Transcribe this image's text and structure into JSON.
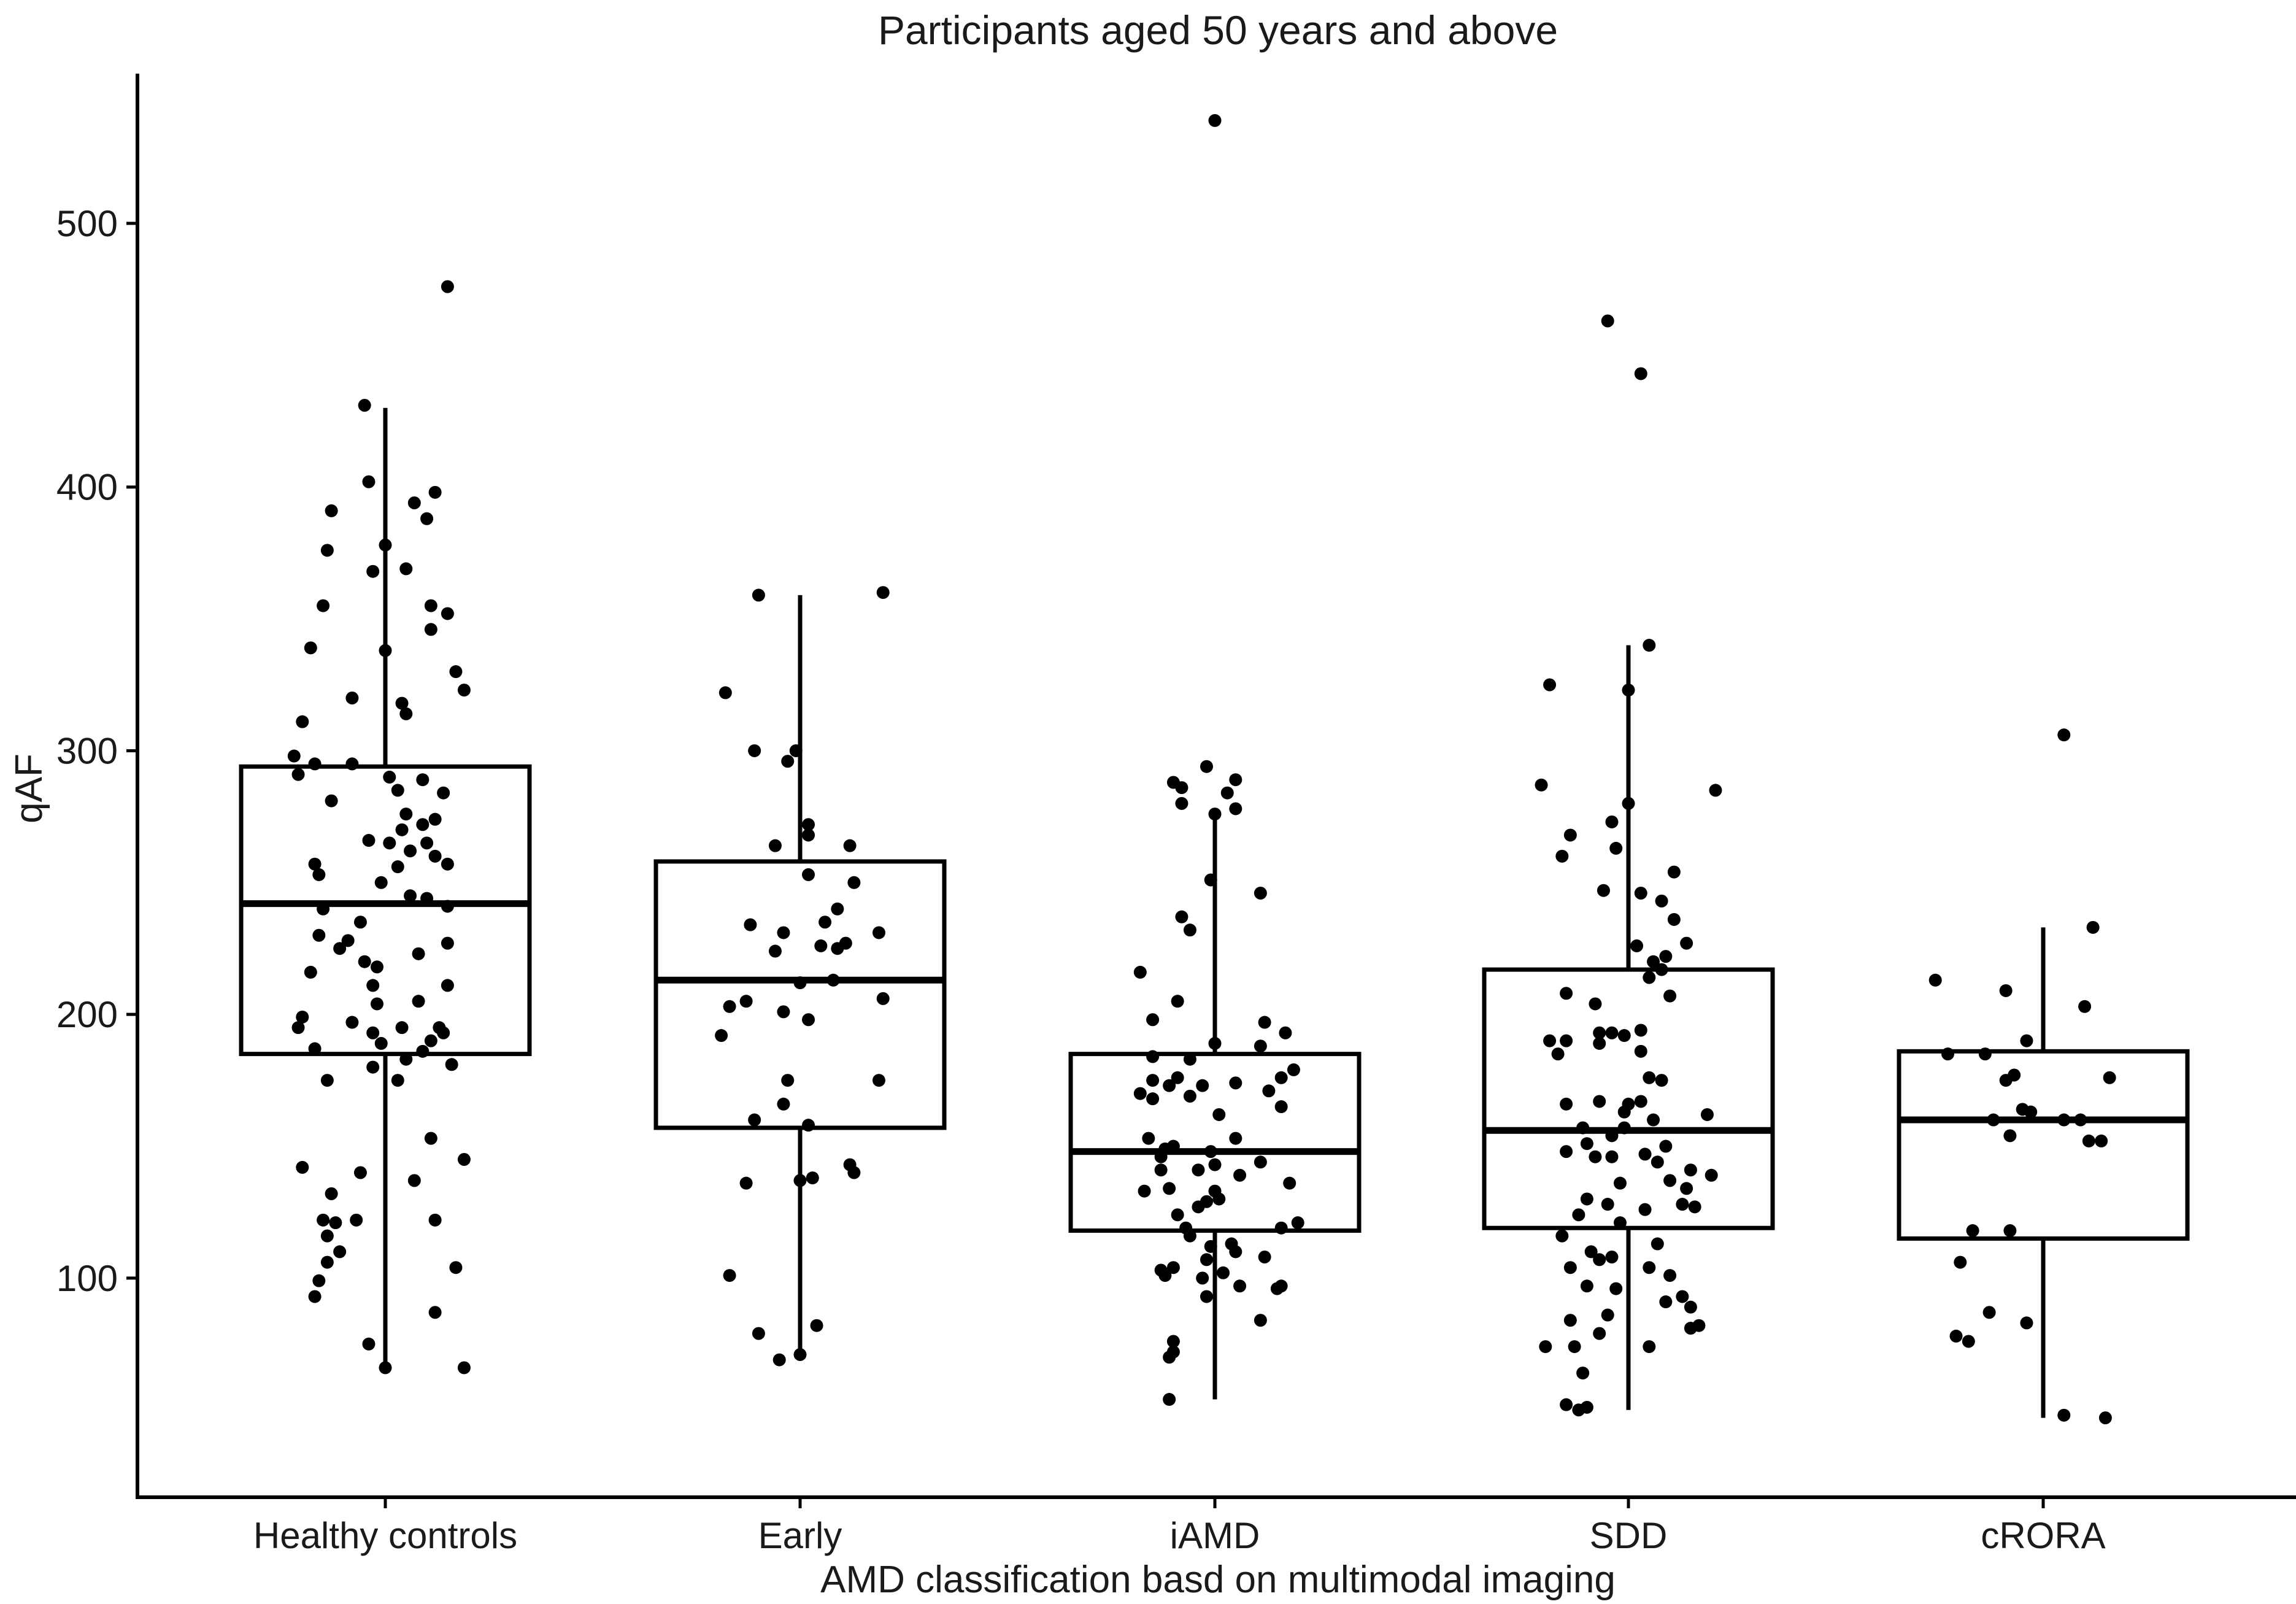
{
  "chart_data": {
    "type": "boxplot",
    "title": "Participants aged 50 years and above",
    "xlabel": "AMD classification basd on multimodal imaging",
    "ylabel": "qAF",
    "ylim": [
      30,
      570
    ],
    "yticks": [
      100,
      200,
      300,
      400,
      500
    ],
    "categories": [
      "Healthy controls",
      "Early",
      "iAMD",
      "SDD",
      "cRORA"
    ],
    "boxes": [
      {
        "name": "Healthy controls",
        "whisker_low": 66,
        "q1": 185,
        "median": 242,
        "q3": 294,
        "whisker_high": 430
      },
      {
        "name": "Early",
        "whisker_low": 70,
        "q1": 157,
        "median": 213,
        "q3": 258,
        "whisker_high": 359
      },
      {
        "name": "iAMD",
        "whisker_low": 54,
        "q1": 118,
        "median": 148,
        "q3": 185,
        "whisker_high": 276
      },
      {
        "name": "SDD",
        "whisker_low": 50,
        "q1": 119,
        "median": 156,
        "q3": 217,
        "whisker_high": 340
      },
      {
        "name": "cRORA",
        "whisker_low": 47,
        "q1": 115,
        "median": 160,
        "q3": 186,
        "whisker_high": 233
      }
    ],
    "points": [
      [
        [
          -0.05,
          431
        ],
        [
          0.15,
          476
        ],
        [
          -0.04,
          402
        ],
        [
          0.12,
          398
        ],
        [
          0.07,
          394
        ],
        [
          0.1,
          388
        ],
        [
          -0.13,
          391
        ],
        [
          -0.14,
          376
        ],
        [
          0.0,
          378
        ],
        [
          -0.03,
          368
        ],
        [
          0.05,
          369
        ],
        [
          -0.15,
          355
        ],
        [
          0.11,
          355
        ],
        [
          0.15,
          352
        ],
        [
          0.11,
          346
        ],
        [
          0.0,
          338
        ],
        [
          -0.18,
          339
        ],
        [
          0.17,
          330
        ],
        [
          0.19,
          323
        ],
        [
          -0.08,
          320
        ],
        [
          0.04,
          318
        ],
        [
          0.05,
          314
        ],
        [
          -0.2,
          311
        ],
        [
          -0.22,
          298
        ],
        [
          -0.17,
          295
        ],
        [
          -0.08,
          295
        ],
        [
          -0.21,
          291
        ],
        [
          0.01,
          290
        ],
        [
          0.09,
          289
        ],
        [
          0.03,
          285
        ],
        [
          0.14,
          284
        ],
        [
          -0.13,
          281
        ],
        [
          0.05,
          276
        ],
        [
          0.12,
          274
        ],
        [
          0.09,
          272
        ],
        [
          0.04,
          270
        ],
        [
          -0.04,
          266
        ],
        [
          0.01,
          265
        ],
        [
          0.1,
          265
        ],
        [
          0.06,
          262
        ],
        [
          0.12,
          260
        ],
        [
          -0.17,
          257
        ],
        [
          0.15,
          257
        ],
        [
          0.03,
          256
        ],
        [
          -0.16,
          253
        ],
        [
          -0.01,
          250
        ],
        [
          0.06,
          245
        ],
        [
          0.1,
          244
        ],
        [
          -0.15,
          240
        ],
        [
          0.15,
          241
        ],
        [
          -0.06,
          235
        ],
        [
          -0.16,
          230
        ],
        [
          -0.09,
          228
        ],
        [
          0.15,
          227
        ],
        [
          -0.11,
          225
        ],
        [
          0.08,
          223
        ],
        [
          -0.05,
          220
        ],
        [
          -0.02,
          218
        ],
        [
          -0.18,
          216
        ],
        [
          0.15,
          211
        ],
        [
          -0.03,
          211
        ],
        [
          0.08,
          205
        ],
        [
          -0.02,
          204
        ],
        [
          -0.2,
          199
        ],
        [
          -0.21,
          195
        ],
        [
          0.13,
          195
        ],
        [
          -0.08,
          197
        ],
        [
          -0.03,
          193
        ],
        [
          0.04,
          195
        ],
        [
          -0.01,
          189
        ],
        [
          0.14,
          193
        ],
        [
          0.11,
          190
        ],
        [
          0.09,
          186
        ],
        [
          -0.17,
          187
        ],
        [
          0.05,
          183
        ],
        [
          0.16,
          181
        ],
        [
          -0.03,
          180
        ],
        [
          -0.14,
          175
        ],
        [
          0.03,
          175
        ],
        [
          0.11,
          153
        ],
        [
          0.19,
          145
        ],
        [
          -0.2,
          142
        ],
        [
          -0.06,
          140
        ],
        [
          0.07,
          137
        ],
        [
          -0.13,
          132
        ],
        [
          -0.12,
          121
        ],
        [
          -0.07,
          122
        ],
        [
          -0.15,
          122
        ],
        [
          0.12,
          122
        ],
        [
          -0.14,
          116
        ],
        [
          -0.11,
          110
        ],
        [
          -0.14,
          106
        ],
        [
          0.17,
          104
        ],
        [
          -0.16,
          99
        ],
        [
          -0.17,
          93
        ],
        [
          0.12,
          87
        ],
        [
          -0.04,
          75
        ],
        [
          0.0,
          66
        ],
        [
          0.19,
          66
        ]
      ],
      [
        [
          0.2,
          360
        ],
        [
          -0.1,
          359
        ],
        [
          -0.18,
          322
        ],
        [
          -0.11,
          300
        ],
        [
          -0.01,
          300
        ],
        [
          -0.03,
          296
        ],
        [
          0.02,
          272
        ],
        [
          0.02,
          268
        ],
        [
          0.12,
          264
        ],
        [
          -0.06,
          264
        ],
        [
          0.13,
          250
        ],
        [
          0.02,
          253
        ],
        [
          0.09,
          240
        ],
        [
          0.06,
          235
        ],
        [
          -0.12,
          234
        ],
        [
          -0.04,
          231
        ],
        [
          0.19,
          231
        ],
        [
          0.11,
          227
        ],
        [
          0.09,
          225
        ],
        [
          0.05,
          226
        ],
        [
          -0.06,
          224
        ],
        [
          0.0,
          212
        ],
        [
          0.08,
          213
        ],
        [
          0.2,
          206
        ],
        [
          -0.13,
          205
        ],
        [
          -0.17,
          203
        ],
        [
          -0.04,
          201
        ],
        [
          0.02,
          198
        ],
        [
          -0.19,
          192
        ],
        [
          0.19,
          175
        ],
        [
          -0.03,
          175
        ],
        [
          -0.11,
          160
        ],
        [
          -0.04,
          166
        ],
        [
          0.02,
          158
        ],
        [
          0.12,
          143
        ],
        [
          0.13,
          140
        ],
        [
          0.03,
          138
        ],
        [
          0.0,
          137
        ],
        [
          -0.13,
          136
        ],
        [
          -0.17,
          101
        ],
        [
          -0.1,
          79
        ],
        [
          0.04,
          82
        ],
        [
          0.0,
          71
        ],
        [
          -0.05,
          69
        ]
      ],
      [
        [
          0.0,
          539
        ],
        [
          -0.02,
          294
        ],
        [
          0.05,
          289
        ],
        [
          -0.1,
          288
        ],
        [
          -0.08,
          286
        ],
        [
          0.03,
          284
        ],
        [
          -0.08,
          280
        ],
        [
          0.05,
          278
        ],
        [
          0.0,
          276
        ],
        [
          -0.01,
          251
        ],
        [
          0.11,
          246
        ],
        [
          -0.08,
          237
        ],
        [
          -0.06,
          232
        ],
        [
          -0.18,
          216
        ],
        [
          -0.09,
          205
        ],
        [
          -0.15,
          198
        ],
        [
          0.12,
          197
        ],
        [
          0.17,
          193
        ],
        [
          0.0,
          189
        ],
        [
          0.11,
          188
        ],
        [
          -0.15,
          184
        ],
        [
          -0.06,
          183
        ],
        [
          0.19,
          179
        ],
        [
          0.16,
          176
        ],
        [
          -0.09,
          176
        ],
        [
          -0.15,
          175
        ],
        [
          -0.11,
          173
        ],
        [
          0.05,
          174
        ],
        [
          -0.03,
          173
        ],
        [
          0.13,
          171
        ],
        [
          -0.06,
          169
        ],
        [
          -0.15,
          168
        ],
        [
          -0.18,
          170
        ],
        [
          0.16,
          165
        ],
        [
          0.01,
          162
        ],
        [
          -0.16,
          153
        ],
        [
          -0.1,
          150
        ],
        [
          0.05,
          153
        ],
        [
          -0.12,
          149
        ],
        [
          -0.01,
          148
        ],
        [
          -0.13,
          146
        ],
        [
          0.11,
          144
        ],
        [
          0.0,
          143
        ],
        [
          -0.13,
          141
        ],
        [
          -0.04,
          141
        ],
        [
          0.06,
          139
        ],
        [
          0.18,
          136
        ],
        [
          -0.11,
          134
        ],
        [
          -0.17,
          133
        ],
        [
          0.0,
          133
        ],
        [
          0.01,
          130
        ],
        [
          -0.02,
          129
        ],
        [
          -0.04,
          127
        ],
        [
          -0.09,
          124
        ],
        [
          0.2,
          121
        ],
        [
          0.16,
          119
        ],
        [
          -0.07,
          119
        ],
        [
          -0.06,
          116
        ],
        [
          0.04,
          113
        ],
        [
          -0.01,
          112
        ],
        [
          0.05,
          110
        ],
        [
          0.12,
          108
        ],
        [
          -0.02,
          107
        ],
        [
          -0.1,
          104
        ],
        [
          -0.13,
          103
        ],
        [
          0.02,
          102
        ],
        [
          -0.12,
          101
        ],
        [
          -0.03,
          100
        ],
        [
          0.06,
          97
        ],
        [
          0.16,
          97
        ],
        [
          0.15,
          96
        ],
        [
          -0.02,
          93
        ],
        [
          0.11,
          84
        ],
        [
          -0.1,
          76
        ],
        [
          -0.1,
          72
        ],
        [
          -0.11,
          70
        ],
        [
          -0.11,
          54
        ]
      ],
      [
        [
          -0.05,
          463
        ],
        [
          0.03,
          443
        ],
        [
          0.05,
          340
        ],
        [
          -0.19,
          325
        ],
        [
          0.0,
          323
        ],
        [
          -0.21,
          287
        ],
        [
          0.21,
          285
        ],
        [
          0.0,
          280
        ],
        [
          -0.04,
          273
        ],
        [
          -0.14,
          268
        ],
        [
          -0.16,
          260
        ],
        [
          -0.03,
          263
        ],
        [
          0.11,
          254
        ],
        [
          -0.06,
          247
        ],
        [
          0.03,
          246
        ],
        [
          0.08,
          243
        ],
        [
          0.11,
          236
        ],
        [
          0.02,
          226
        ],
        [
          0.14,
          227
        ],
        [
          0.09,
          222
        ],
        [
          0.06,
          220
        ],
        [
          0.08,
          217
        ],
        [
          0.05,
          214
        ],
        [
          -0.15,
          208
        ],
        [
          0.1,
          207
        ],
        [
          -0.08,
          204
        ],
        [
          0.03,
          194
        ],
        [
          -0.07,
          193
        ],
        [
          -0.01,
          192
        ],
        [
          -0.04,
          193
        ],
        [
          0.03,
          186
        ],
        [
          -0.19,
          190
        ],
        [
          -0.15,
          190
        ],
        [
          -0.07,
          189
        ],
        [
          -0.17,
          185
        ],
        [
          0.08,
          175
        ],
        [
          0.05,
          176
        ],
        [
          -0.15,
          166
        ],
        [
          0.03,
          167
        ],
        [
          0.0,
          166
        ],
        [
          -0.07,
          167
        ],
        [
          -0.01,
          163
        ],
        [
          0.06,
          160
        ],
        [
          0.19,
          162
        ],
        [
          -0.11,
          157
        ],
        [
          -0.04,
          154
        ],
        [
          -0.01,
          157
        ],
        [
          -0.1,
          151
        ],
        [
          0.09,
          150
        ],
        [
          -0.08,
          146
        ],
        [
          -0.15,
          148
        ],
        [
          0.04,
          147
        ],
        [
          -0.04,
          146
        ],
        [
          0.07,
          144
        ],
        [
          0.15,
          141
        ],
        [
          0.2,
          139
        ],
        [
          0.1,
          137
        ],
        [
          -0.02,
          136
        ],
        [
          0.14,
          134
        ],
        [
          -0.1,
          130
        ],
        [
          0.13,
          128
        ],
        [
          -0.05,
          128
        ],
        [
          0.16,
          127
        ],
        [
          0.04,
          126
        ],
        [
          -0.12,
          124
        ],
        [
          -0.02,
          121
        ],
        [
          -0.16,
          116
        ],
        [
          0.07,
          113
        ],
        [
          -0.09,
          110
        ],
        [
          -0.04,
          108
        ],
        [
          -0.07,
          107
        ],
        [
          0.05,
          104
        ],
        [
          -0.14,
          104
        ],
        [
          0.1,
          101
        ],
        [
          -0.1,
          97
        ],
        [
          -0.03,
          96
        ],
        [
          0.13,
          93
        ],
        [
          0.09,
          91
        ],
        [
          0.15,
          89
        ],
        [
          -0.05,
          86
        ],
        [
          -0.14,
          84
        ],
        [
          0.17,
          82
        ],
        [
          0.15,
          81
        ],
        [
          -0.07,
          79
        ],
        [
          -0.13,
          74
        ],
        [
          0.05,
          74
        ],
        [
          -0.2,
          74
        ],
        [
          -0.11,
          64
        ],
        [
          -0.15,
          52
        ],
        [
          -0.1,
          51
        ],
        [
          -0.12,
          50
        ]
      ],
      [
        [
          0.05,
          306
        ],
        [
          0.12,
          233
        ],
        [
          0.1,
          203
        ],
        [
          -0.26,
          213
        ],
        [
          -0.09,
          209
        ],
        [
          -0.04,
          190
        ],
        [
          -0.23,
          185
        ],
        [
          -0.14,
          185
        ],
        [
          -0.07,
          177
        ],
        [
          0.16,
          176
        ],
        [
          -0.09,
          175
        ],
        [
          -0.05,
          164
        ],
        [
          -0.03,
          163
        ],
        [
          -0.12,
          160
        ],
        [
          0.09,
          160
        ],
        [
          0.05,
          160
        ],
        [
          -0.08,
          154
        ],
        [
          0.11,
          152
        ],
        [
          0.14,
          152
        ],
        [
          -0.17,
          118
        ],
        [
          -0.08,
          118
        ],
        [
          -0.2,
          106
        ],
        [
          -0.13,
          87
        ],
        [
          -0.21,
          78
        ],
        [
          -0.18,
          76
        ],
        [
          -0.04,
          83
        ],
        [
          0.05,
          48
        ],
        [
          0.15,
          47
        ]
      ]
    ]
  }
}
